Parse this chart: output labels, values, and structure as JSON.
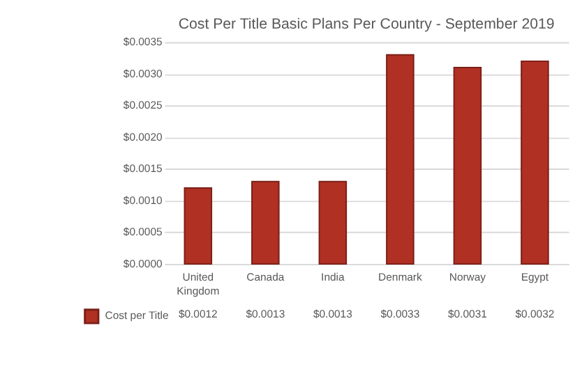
{
  "chart_data": {
    "type": "bar",
    "title": "Cost Per Title Basic Plans Per Country - September 2019",
    "categories": [
      "United Kingdom",
      "Canada",
      "India",
      "Denmark",
      "Norway",
      "Egypt"
    ],
    "series": [
      {
        "name": "Cost per Title",
        "color": "#b03024",
        "values": [
          0.0012,
          0.0013,
          0.0013,
          0.0033,
          0.0031,
          0.0032
        ],
        "value_labels": [
          "$0.0012",
          "$0.0013",
          "$0.0013",
          "$0.0033",
          "$0.0031",
          "$0.0032"
        ]
      }
    ],
    "ylim": [
      0,
      0.0035
    ],
    "yticks": [
      {
        "value": 0,
        "label": "$0.0000"
      },
      {
        "value": 0.0005,
        "label": "$0.0005"
      },
      {
        "value": 0.001,
        "label": "$0.0010"
      },
      {
        "value": 0.0015,
        "label": "$0.0015"
      },
      {
        "value": 0.002,
        "label": "$0.0020"
      },
      {
        "value": 0.0025,
        "label": "$0.0025"
      },
      {
        "value": 0.003,
        "label": "$0.0030"
      },
      {
        "value": 0.0035,
        "label": "$0.0035"
      }
    ],
    "grid": "y",
    "legend": "bottom left"
  }
}
